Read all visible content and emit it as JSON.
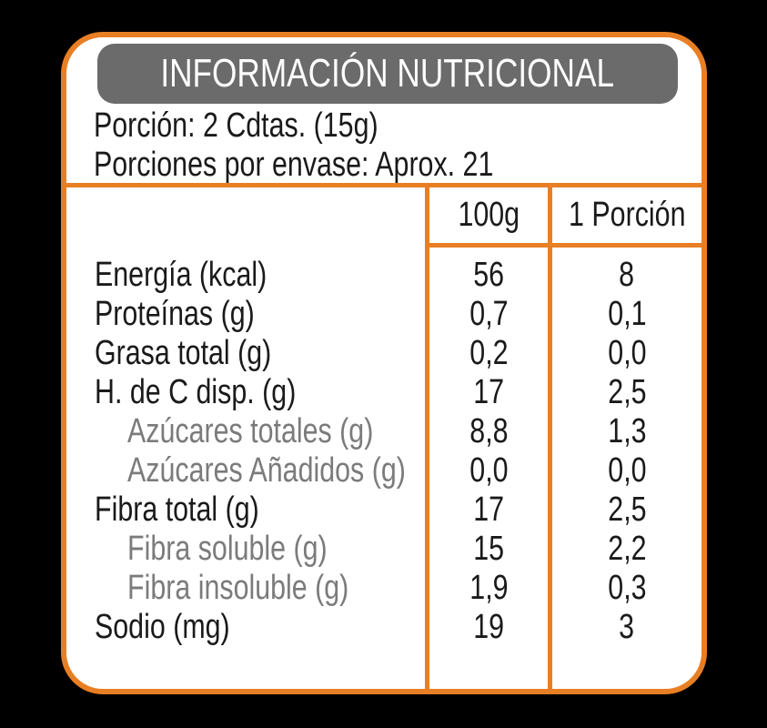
{
  "colors": {
    "accent": "#E87F24",
    "header_bg": "#6B6B6B",
    "card_bg": "#FFFFFF",
    "canvas_bg": "#000000",
    "title_text": "#FDFDFD",
    "label_text": "#1A1A1A",
    "sublabel_text": "#7B7B7B"
  },
  "title": "INFORMACIÓN NUTRICIONAL",
  "serving": {
    "line1": "Porción: 2 Cdtas. (15g)",
    "line2": "Porciones por envase: Aprox. 21"
  },
  "table": {
    "columns": [
      "100g",
      "1 Porción"
    ],
    "rows": [
      {
        "label": "Energía (kcal)",
        "per100": "56",
        "porcion": "8",
        "indent": false
      },
      {
        "label": "Proteínas (g)",
        "per100": "0,7",
        "porcion": "0,1",
        "indent": false
      },
      {
        "label": "Grasa total (g)",
        "per100": "0,2",
        "porcion": "0,0",
        "indent": false
      },
      {
        "label": "H. de C disp. (g)",
        "per100": "17",
        "porcion": "2,5",
        "indent": false
      },
      {
        "label": "Azúcares totales (g)",
        "per100": "8,8",
        "porcion": "1,3",
        "indent": true
      },
      {
        "label": "Azúcares Añadidos (g)",
        "per100": "0,0",
        "porcion": "0,0",
        "indent": true
      },
      {
        "label": "Fibra total (g)",
        "per100": "17",
        "porcion": "2,5",
        "indent": false
      },
      {
        "label": "Fibra soluble (g)",
        "per100": "15",
        "porcion": "2,2",
        "indent": true
      },
      {
        "label": "Fibra insoluble (g)",
        "per100": "1,9",
        "porcion": "0,3",
        "indent": true
      },
      {
        "label": "Sodio (mg)",
        "per100": "19",
        "porcion": "3",
        "indent": false
      }
    ]
  }
}
